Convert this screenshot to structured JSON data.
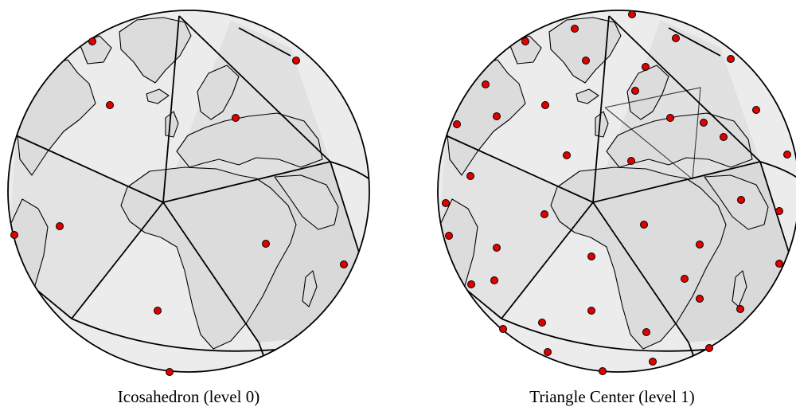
{
  "panels": [
    {
      "caption": "Icosahedron (level 0)"
    },
    {
      "caption": "Triangle Center (level 1)"
    }
  ],
  "colors": {
    "ocean": "#ececec",
    "face_shade": "#d9d9d9",
    "land": "#dcdcdc",
    "outline": "#000000",
    "point": "#e00000"
  }
}
